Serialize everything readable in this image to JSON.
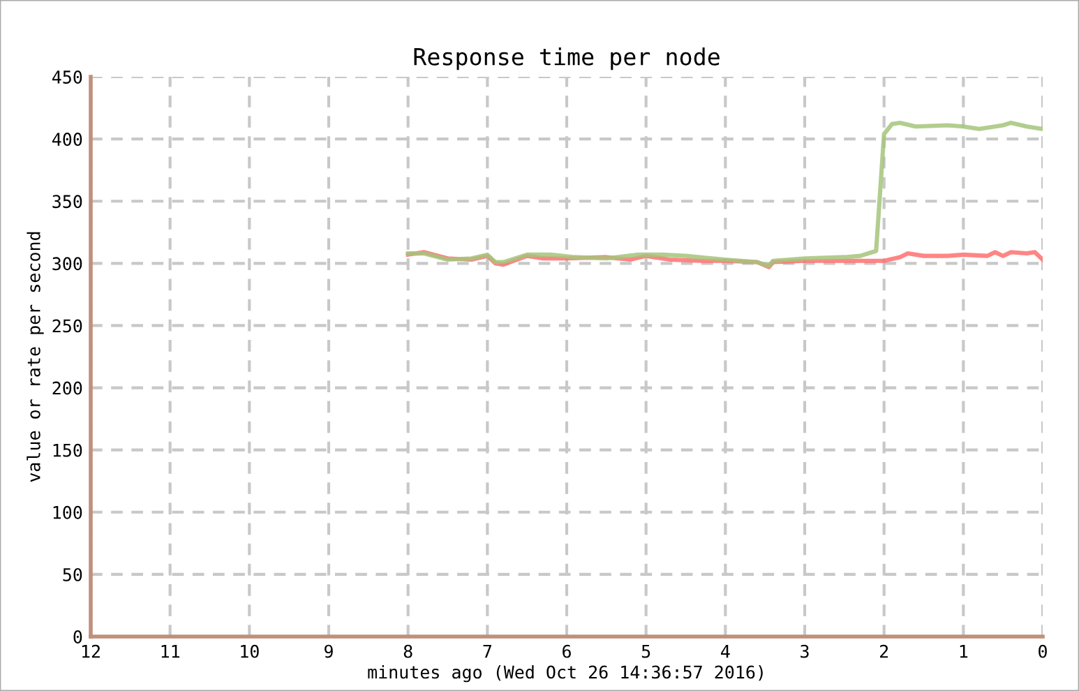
{
  "chart_data": {
    "type": "line",
    "title": "Response time per node",
    "xlabel": "minutes ago (Wed Oct 26 14:36:57 2016)",
    "ylabel": "value or rate per second",
    "xlim": [
      12,
      0
    ],
    "xticks": [
      12,
      11,
      10,
      9,
      8,
      7,
      6,
      5,
      4,
      3,
      2,
      1,
      0
    ],
    "ylim": [
      0,
      450
    ],
    "yticks": [
      0,
      50,
      100,
      150,
      200,
      250,
      300,
      350,
      400,
      450
    ],
    "grid": true,
    "line_style": "solid",
    "series": [
      {
        "color": "#ff7070",
        "x": [
          8,
          7.8,
          7.5,
          7.2,
          7.0,
          6.9,
          6.8,
          6.5,
          6.3,
          6.0,
          5.5,
          5.2,
          5.0,
          4.7,
          4.3,
          4.0,
          3.6,
          3.45,
          3.4,
          3.0,
          2.5,
          2.0,
          1.8,
          1.7,
          1.5,
          1.2,
          1.0,
          0.7,
          0.6,
          0.5,
          0.4,
          0.2,
          0.1,
          0
        ],
        "values": [
          307,
          309,
          304,
          303,
          306,
          300,
          299,
          306,
          304,
          304,
          305,
          303,
          306,
          303,
          302,
          302,
          301,
          297,
          301,
          302,
          302,
          302,
          305,
          308,
          306,
          306,
          307,
          306,
          309,
          306,
          309,
          308,
          309,
          303
        ]
      },
      {
        "color": "#a5c47a",
        "x": [
          8,
          7.8,
          7.5,
          7.2,
          7.0,
          6.9,
          6.8,
          6.5,
          6.2,
          5.9,
          5.5,
          5.1,
          4.8,
          4.5,
          4.0,
          3.6,
          3.45,
          3.4,
          3.0,
          2.5,
          2.3,
          2.1,
          2.0,
          1.9,
          1.8,
          1.6,
          1.2,
          1.0,
          0.8,
          0.5,
          0.4,
          0.2,
          0
        ],
        "values": [
          308,
          308,
          303,
          304,
          307,
          301,
          301,
          307,
          307,
          305,
          304,
          307,
          307,
          306,
          303,
          301,
          298,
          302,
          304,
          305,
          306,
          310,
          404,
          412,
          413,
          410,
          411,
          410,
          408,
          411,
          413,
          410,
          408
        ]
      }
    ]
  }
}
